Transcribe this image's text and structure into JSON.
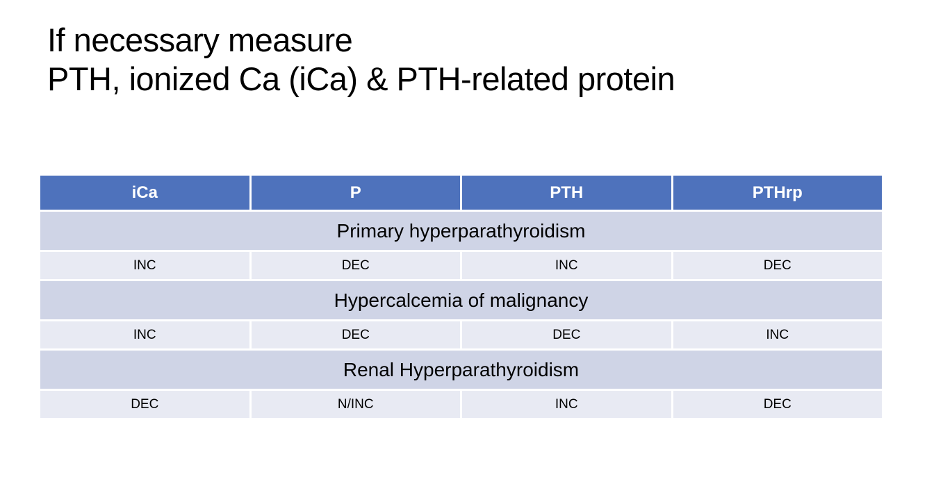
{
  "slide": {
    "title_lines": [
      "If necessary measure",
      "PTH, ionized Ca (iCa) & PTH-related protein"
    ]
  },
  "table": {
    "columns": [
      "iCa",
      "P",
      "PTH",
      "PTHrp"
    ],
    "sections": [
      {
        "label": "Primary hyperparathyroidism",
        "values": [
          "INC",
          "DEC",
          "INC",
          "DEC"
        ]
      },
      {
        "label": "Hypercalcemia of malignancy",
        "values": [
          "INC",
          "DEC",
          "DEC",
          "INC"
        ]
      },
      {
        "label": "Renal Hyperparathyroidism",
        "values": [
          "DEC",
          "N/INC",
          "INC",
          "DEC"
        ]
      }
    ]
  },
  "colors": {
    "background": "#FFFFFF",
    "text": "#000000",
    "header_bg": "#4E72BC",
    "header_text": "#FFFFFF",
    "section_bg": "#CFD4E6",
    "value_bg": "#E8EAF3"
  }
}
